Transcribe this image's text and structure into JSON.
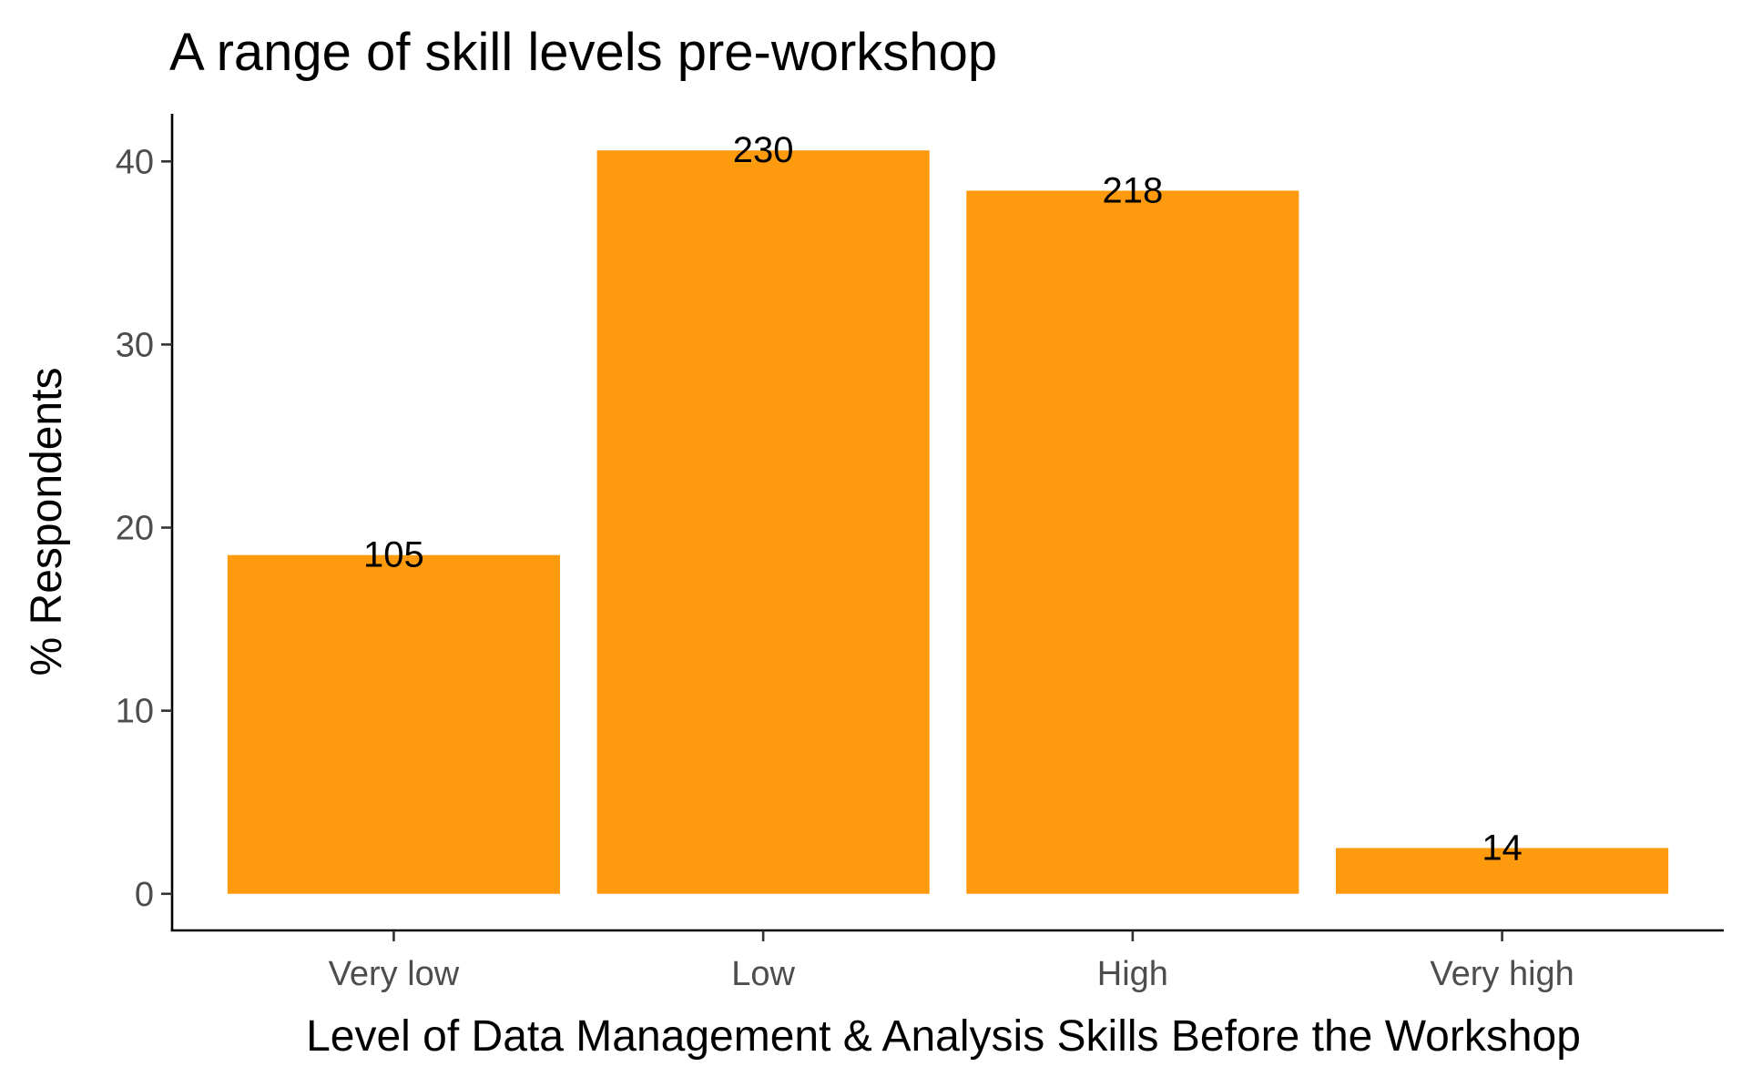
{
  "chart_data": {
    "type": "bar",
    "title": "A range of skill levels pre-workshop",
    "xlabel": "Level of Data Management & Analysis Skills Before the Workshop",
    "ylabel": "% Respondents",
    "categories": [
      "Very low",
      "Low",
      "High",
      "Very high"
    ],
    "values": [
      18.5,
      40.6,
      38.4,
      2.5
    ],
    "data_labels": [
      "105",
      "230",
      "218",
      "14"
    ],
    "yticks": [
      0,
      10,
      20,
      30,
      40
    ],
    "ylim": [
      -2,
      42.6
    ],
    "grid": false,
    "legend": "none",
    "bar_color": "#FE9A0D"
  }
}
